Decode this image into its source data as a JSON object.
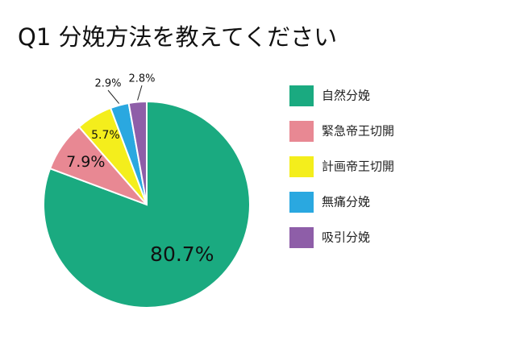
{
  "chart_data": {
    "type": "pie",
    "title": "Q1 分娩方法を教えてください",
    "categories": [
      "自然分娩",
      "緊急帝王切開",
      "計画帝王切開",
      "無痛分娩",
      "吸引分娩"
    ],
    "values": [
      80.7,
      7.9,
      5.7,
      2.9,
      2.8
    ],
    "data_labels": [
      "80.7%",
      "7.9%",
      "5.7%",
      "2.9%",
      "2.8%"
    ],
    "colors": [
      "#1aaa80",
      "#e88893",
      "#f4ee1c",
      "#2aa8e0",
      "#8e5ea8"
    ],
    "start_angle_deg": 0,
    "direction": "clockwise",
    "legend_placement": "right"
  }
}
